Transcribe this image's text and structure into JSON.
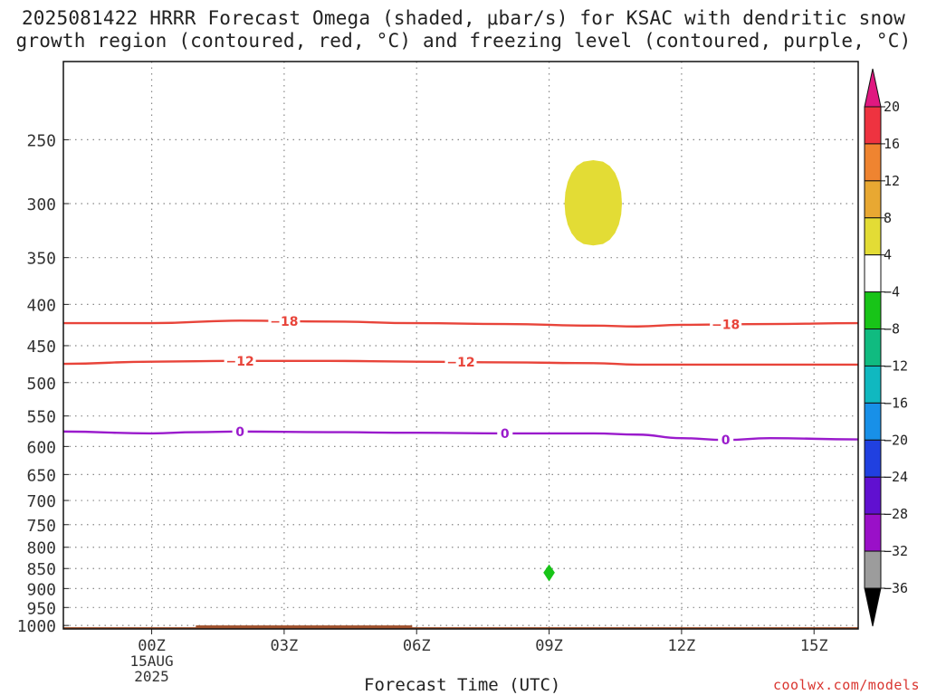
{
  "title_line1": "2025081422 HRRR Forecast Omega (shaded, μbar/s) for KSAC with dendritic snow",
  "title_line2": "growth region (contoured, red, °C) and freezing level (contoured, purple, °C)",
  "watermark": "coolwx.com/models",
  "colors": {
    "dgz": "#e8443a",
    "freezing": "#9a1bcc",
    "omega_pos": "#e3dc35",
    "omega_neg": "#18c418",
    "ground": "#a0522d",
    "grid": "#888888"
  },
  "chart_data": {
    "type": "heatmap",
    "xlabel": "Forecast Time (UTC)",
    "ylabel": "",
    "x_range_hours": [
      -2,
      16
    ],
    "y_range_hpa": [
      200,
      1010
    ],
    "y_scale": "log",
    "grid": true,
    "x_ticks": [
      {
        "hour": 0,
        "label": "00Z",
        "sub1": "15AUG",
        "sub2": "2025"
      },
      {
        "hour": 3,
        "label": "03Z"
      },
      {
        "hour": 6,
        "label": "06Z"
      },
      {
        "hour": 9,
        "label": "09Z"
      },
      {
        "hour": 12,
        "label": "12Z"
      },
      {
        "hour": 15,
        "label": "15Z"
      }
    ],
    "y_ticks": [
      250,
      300,
      350,
      400,
      450,
      500,
      550,
      600,
      650,
      700,
      750,
      800,
      850,
      900,
      950,
      1000
    ],
    "contours": [
      {
        "name": "-18",
        "kind": "dgz",
        "labels_at": [
          3,
          13
        ],
        "points": [
          [
            -2,
            422
          ],
          [
            0,
            422
          ],
          [
            2,
            419
          ],
          [
            4,
            420
          ],
          [
            6,
            422
          ],
          [
            8,
            423
          ],
          [
            10,
            425
          ],
          [
            11,
            426
          ],
          [
            12,
            424
          ],
          [
            14,
            423
          ],
          [
            16,
            422
          ]
        ]
      },
      {
        "name": "-12",
        "kind": "dgz",
        "labels_at": [
          2,
          7
        ],
        "points": [
          [
            -2,
            474
          ],
          [
            0,
            471
          ],
          [
            2,
            470
          ],
          [
            4,
            470
          ],
          [
            6,
            471
          ],
          [
            8,
            472
          ],
          [
            10,
            473
          ],
          [
            11,
            475
          ],
          [
            12,
            475
          ],
          [
            14,
            475
          ],
          [
            16,
            475
          ]
        ]
      },
      {
        "name": "0",
        "kind": "freezing",
        "labels_at": [
          2,
          8,
          13
        ],
        "points": [
          [
            -2,
            575
          ],
          [
            0,
            578
          ],
          [
            1,
            576
          ],
          [
            2,
            575
          ],
          [
            4,
            576
          ],
          [
            6,
            577
          ],
          [
            8,
            578
          ],
          [
            10,
            578
          ],
          [
            11,
            580
          ],
          [
            12,
            586
          ],
          [
            13,
            589
          ],
          [
            14,
            586
          ],
          [
            16,
            588
          ]
        ]
      }
    ],
    "omega_shaded": [
      {
        "value_range": [
          4,
          8
        ],
        "kind": "omega_pos",
        "center_hour": 10,
        "center_hpa": 300,
        "hour_halfwidth": 0.65,
        "top_hpa": 265,
        "bottom_hpa": 338
      },
      {
        "value_range": [
          -8,
          -4
        ],
        "kind": "omega_neg",
        "center_hour": 9,
        "center_hpa": 860,
        "hour_halfwidth": 0.13,
        "top_hpa": 840,
        "bottom_hpa": 882
      }
    ],
    "colorbar": {
      "ticks": [
        "20",
        "16",
        "12",
        "8",
        "4",
        "−4",
        "−8",
        "−12",
        "−16",
        "−20",
        "−24",
        "−28",
        "−32",
        "−36"
      ],
      "colors": [
        "#ee3340",
        "#ef8430",
        "#e8a832",
        "#e3dc35",
        "#ffffff",
        "#18c418",
        "#10bb80",
        "#10b8c0",
        "#1890e8",
        "#2040e0",
        "#6010d0",
        "#9a10c8",
        "#9c9c9c"
      ],
      "top_arrow": "#e01880",
      "bottom_arrow": "#000000"
    },
    "ground": {
      "from_hpa": 1005,
      "to_hpa": 1010
    }
  }
}
